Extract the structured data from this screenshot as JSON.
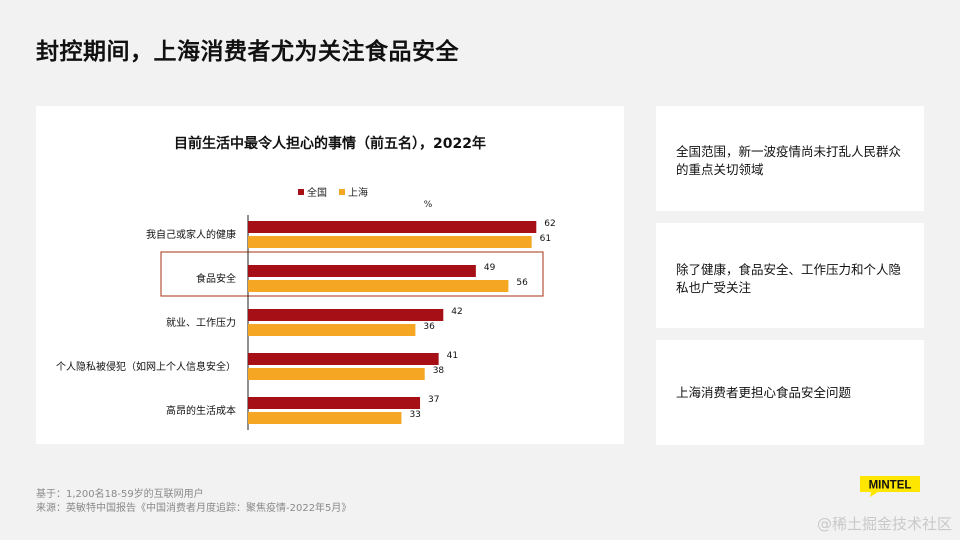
{
  "slide": {
    "title": "封控期间，上海消费者尤为关注食品安全"
  },
  "chart_data": {
    "type": "bar",
    "title": "目前生活中最令人担心的事情（前五名），2022年",
    "unit": "%",
    "categories": [
      "我自己或家人的健康",
      "食品安全",
      "就业、工作压力",
      "个人隐私被侵犯（如网上个人信息安全）",
      "高昂的生活成本"
    ],
    "series": [
      {
        "name": "全国",
        "color": "#a50f15",
        "values": [
          62,
          49,
          42,
          41,
          37
        ]
      },
      {
        "name": "上海",
        "color": "#f5a623",
        "values": [
          61,
          56,
          36,
          38,
          33
        ]
      }
    ],
    "legend_position": "top",
    "highlight_category": "食品安全",
    "highlight_color": "#b5533c",
    "xlim": [
      0,
      100
    ],
    "grid": false
  },
  "insights": [
    {
      "text": "全国范围，新一波疫情尚未打乱人民群众的重点关切领域"
    },
    {
      "text": "除了健康，食品安全、工作压力和个人隐私也广受关注"
    },
    {
      "text": "上海消费者更担心食品安全问题"
    }
  ],
  "footnotes": {
    "base": "基于：1,200名18-59岁的互联网用户",
    "source": "来源：英敏特中国报告《中国消费者月度追踪：聚焦疫情-2022年5月》"
  },
  "logo": {
    "text": "MINTEL",
    "color": "#ffe600"
  },
  "watermark": "@稀土掘金技术社区"
}
